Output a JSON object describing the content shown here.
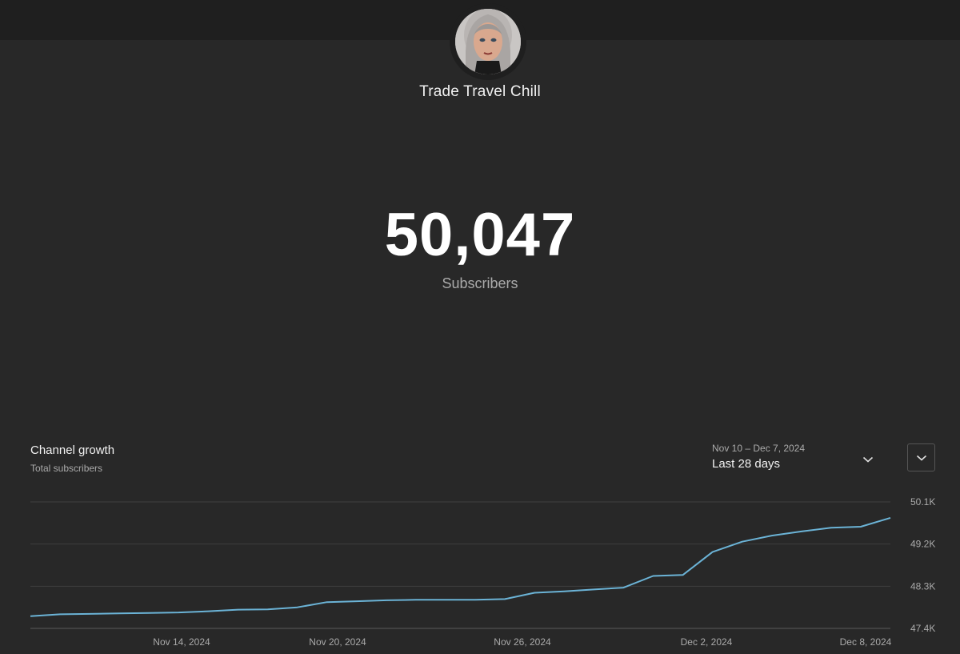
{
  "channel": {
    "name": "Trade Travel Chill",
    "avatar_icon": "channel-avatar-portrait"
  },
  "stats": {
    "subscriber_count": "50,047",
    "subscriber_label": "Subscribers"
  },
  "growth_panel": {
    "title": "Channel growth",
    "subtitle": "Total subscribers",
    "date_range": "Nov 10 – Dec 7, 2024",
    "period_label": "Last 28 days",
    "period_dropdown_icon": "chevron-down-icon",
    "expand_icon": "chevron-down-icon"
  },
  "colors": {
    "background": "#282828",
    "top_bar": "#1f1f1f",
    "line": "#6bb3d6",
    "gridline": "#3f3f3f"
  },
  "chart_data": {
    "type": "line",
    "title": "",
    "xlabel": "",
    "ylabel": "",
    "x_tick_labels": [
      "Nov 14, 2024",
      "Nov 20, 2024",
      "Nov 26, 2024",
      "Dec 2, 2024",
      "Dec 8, 2024"
    ],
    "y_tick_labels": [
      "50.1K",
      "49.2K",
      "48.3K",
      "47.4K"
    ],
    "ylim": [
      47400,
      50100
    ],
    "grid": true,
    "series": [
      {
        "values": [
          47660,
          47700,
          47710,
          47720,
          47730,
          47740,
          47765,
          47800,
          47805,
          47850,
          47960,
          47980,
          48000,
          48010,
          48010,
          48010,
          48025,
          48160,
          48190,
          48230,
          48270,
          48520,
          48540,
          49030,
          49250,
          49380,
          49470,
          49550,
          49570,
          49760
        ]
      }
    ]
  }
}
